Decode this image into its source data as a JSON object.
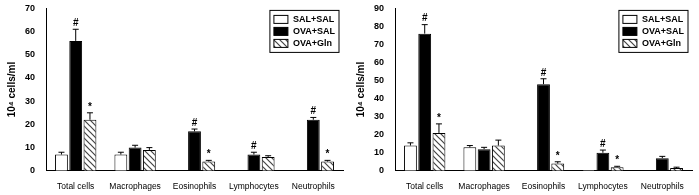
{
  "chart_data": [
    {
      "type": "bar",
      "y_label": "10⁴ cells/ml",
      "categories": [
        "Total cells",
        "Macrophages",
        "Eosinophils",
        "Lymphocytes",
        "Neutrophils"
      ],
      "series": [
        {
          "name": "SAL+SAL",
          "color": "#ffffff",
          "values": [
            7,
            7,
            0,
            0,
            0
          ],
          "errors": [
            1,
            1,
            0,
            0,
            0
          ],
          "marks": [
            null,
            null,
            null,
            null,
            null
          ]
        },
        {
          "name": "OVA+SAL",
          "color": "#000000",
          "values": [
            56,
            10,
            17,
            7,
            22
          ],
          "errors": [
            5,
            1,
            1,
            1,
            1
          ],
          "marks": [
            "#",
            null,
            "#",
            "#",
            "#"
          ]
        },
        {
          "name": "OVA+Gln",
          "color": "#444444",
          "values": [
            22,
            9,
            4,
            6,
            4
          ],
          "errors": [
            3,
            1,
            0.5,
            0.5,
            0.5
          ],
          "marks": [
            "*",
            null,
            "*",
            null,
            "*"
          ]
        }
      ],
      "ylim": [
        0,
        70
      ],
      "yticks": [
        0,
        10,
        20,
        30,
        40,
        50,
        60,
        70
      ],
      "grid": false,
      "legend": "upper right"
    },
    {
      "type": "bar",
      "y_label": "10⁴ cells/ml",
      "categories": [
        "Total cells",
        "Macrophages",
        "Eosinophils",
        "Lymphocytes",
        "Neutrophils"
      ],
      "series": [
        {
          "name": "SAL+SAL",
          "color": "#ffffff",
          "values": [
            14,
            13,
            0,
            0.5,
            0
          ],
          "errors": [
            1.5,
            1,
            0,
            0,
            0
          ],
          "marks": [
            null,
            null,
            null,
            null,
            null
          ]
        },
        {
          "name": "OVA+SAL",
          "color": "#000000",
          "values": [
            76,
            12,
            48,
            10,
            7
          ],
          "errors": [
            5,
            1,
            3,
            1.5,
            1
          ],
          "marks": [
            "#",
            null,
            "#",
            "#",
            null
          ]
        },
        {
          "name": "OVA+Gln",
          "color": "#444444",
          "values": [
            21,
            14,
            4,
            2,
            1.5
          ],
          "errors": [
            5,
            3,
            1,
            0.5,
            0.5
          ],
          "marks": [
            "*",
            null,
            "*",
            "*",
            null
          ]
        }
      ],
      "ylim": [
        0,
        90
      ],
      "yticks": [
        0,
        10,
        20,
        30,
        40,
        50,
        60,
        70,
        80,
        90
      ],
      "grid": false,
      "legend": "upper right"
    }
  ]
}
